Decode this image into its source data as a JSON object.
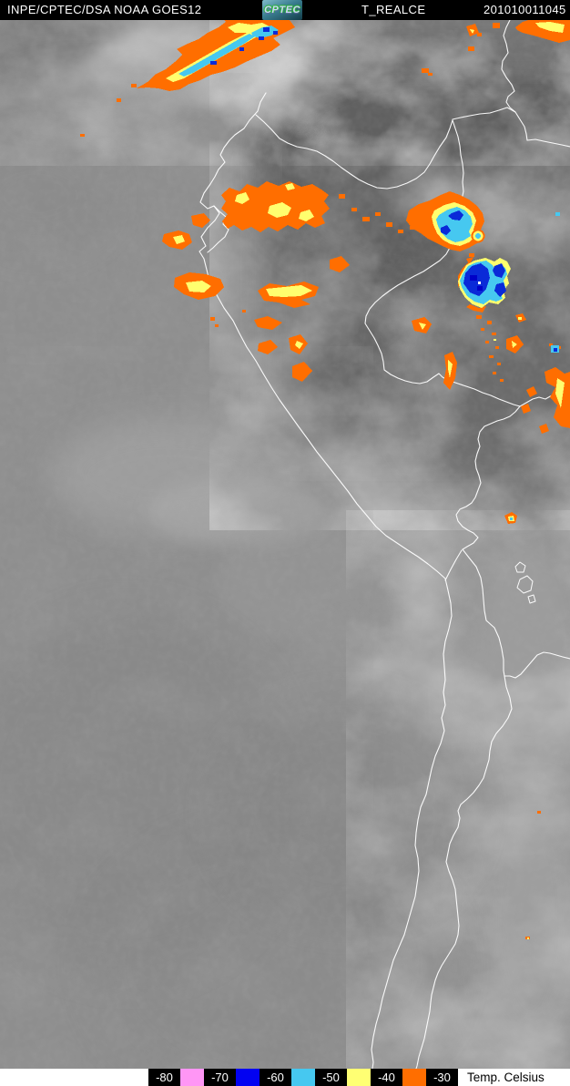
{
  "header": {
    "source": "INPE/CPTEC/DSA NOAA GOES12",
    "logo": "CPTEC",
    "product": "T_REALCE",
    "timestamp": "201010011045"
  },
  "legend": {
    "units": "Temp. Celsius",
    "ticks": [
      "-80",
      "-70",
      "-60",
      "-50",
      "-40",
      "-30"
    ],
    "swatch_colors": [
      "#FF96F5",
      "#0202F2",
      "#46C8F0",
      "#FFFF73",
      "#FF6E00"
    ]
  },
  "palette": {
    "header_bg": "#000000",
    "header_text": "#FFFFFF",
    "legend_bg": "#FFFFFF",
    "legend_text": "#000000",
    "border_line": "#FFFFFF",
    "storm_orange": "#FF6E00",
    "storm_yellow": "#FFFF6E",
    "storm_cyan": "#46C8F0",
    "storm_blue": "#0A2AD8",
    "storm_dark_blue": "#0000C8",
    "ocean_gray": "#8E8E8E",
    "amazon_dark_gray": "#646464"
  }
}
